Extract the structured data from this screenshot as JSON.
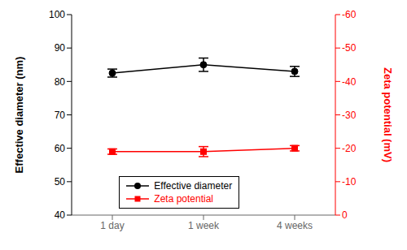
{
  "chart_data": {
    "type": "line",
    "categories": [
      "1 day",
      "1 week",
      "4 weeks"
    ],
    "series": [
      {
        "name": "Effective diameter",
        "color": "#000000",
        "values": [
          82.5,
          85.0,
          83.0
        ],
        "errors": [
          1.2,
          2.0,
          1.5
        ],
        "marker": "circle"
      },
      {
        "name": "Zeta potential",
        "color": "#ff0000",
        "values": [
          -19.0,
          -19.0,
          -20.0
        ],
        "errors": [
          0.8,
          1.5,
          0.8
        ],
        "marker": "square",
        "axis": "y2"
      }
    ],
    "ylabel": "Effective diameter (nm)",
    "y2label": "Zeta potential (mV)",
    "ylim": [
      40,
      100
    ],
    "yticks": [
      40,
      50,
      60,
      70,
      80,
      90,
      100
    ],
    "y2lim": [
      0,
      -60
    ],
    "y2ticks": [
      0,
      -10,
      -20,
      -30,
      -40,
      -50,
      -60
    ],
    "grid": false,
    "legend": "lower left"
  }
}
